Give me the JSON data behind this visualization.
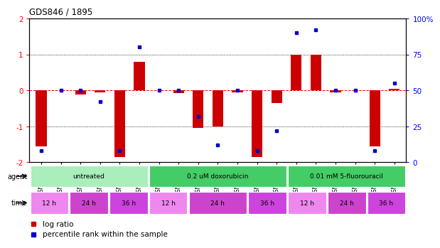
{
  "title": "GDS846 / 1895",
  "samples": [
    "GSM11708",
    "GSM11735",
    "GSM11733",
    "GSM11863",
    "GSM11710",
    "GSM11712",
    "GSM11732",
    "GSM11844",
    "GSM11842",
    "GSM11860",
    "GSM11686",
    "GSM11688",
    "GSM11846",
    "GSM11680",
    "GSM11698",
    "GSM11840",
    "GSM11847",
    "GSM11685",
    "GSM11699"
  ],
  "log_ratios": [
    -1.55,
    0.0,
    -0.12,
    -0.05,
    -1.85,
    0.8,
    0.0,
    -0.08,
    -1.05,
    -1.0,
    -0.05,
    -1.85,
    -0.35,
    1.0,
    1.0,
    -0.05,
    0.0,
    -1.55,
    0.05
  ],
  "percentile_ranks": [
    8,
    50,
    50,
    42,
    8,
    80,
    50,
    50,
    32,
    12,
    50,
    8,
    22,
    90,
    92,
    50,
    50,
    8,
    55
  ],
  "agents": [
    {
      "label": "untreated",
      "start": 0,
      "end": 6,
      "color": "#aaeebb"
    },
    {
      "label": "0.2 uM doxorubicin",
      "start": 6,
      "end": 13,
      "color": "#44cc66"
    },
    {
      "label": "0.01 mM 5-fluorouracil",
      "start": 13,
      "end": 19,
      "color": "#44cc66"
    }
  ],
  "times": [
    {
      "label": "12 h",
      "start": 0,
      "end": 2,
      "color": "#ee88ee"
    },
    {
      "label": "24 h",
      "start": 2,
      "end": 4,
      "color": "#cc44cc"
    },
    {
      "label": "36 h",
      "start": 4,
      "end": 6,
      "color": "#cc44dd"
    },
    {
      "label": "12 h",
      "start": 6,
      "end": 8,
      "color": "#ee88ee"
    },
    {
      "label": "24 h",
      "start": 8,
      "end": 11,
      "color": "#cc44cc"
    },
    {
      "label": "36 h",
      "start": 11,
      "end": 13,
      "color": "#cc44dd"
    },
    {
      "label": "12 h",
      "start": 13,
      "end": 15,
      "color": "#ee88ee"
    },
    {
      "label": "24 h",
      "start": 15,
      "end": 17,
      "color": "#cc44cc"
    },
    {
      "label": "36 h",
      "start": 17,
      "end": 19,
      "color": "#cc44dd"
    }
  ],
  "ylim": [
    -2,
    2
  ],
  "bar_color": "#cc0000",
  "dot_color": "#0000cc",
  "left_yticks": [
    -2,
    -1,
    0,
    1,
    2
  ],
  "right_yticks": [
    0,
    25,
    50,
    75,
    100
  ]
}
